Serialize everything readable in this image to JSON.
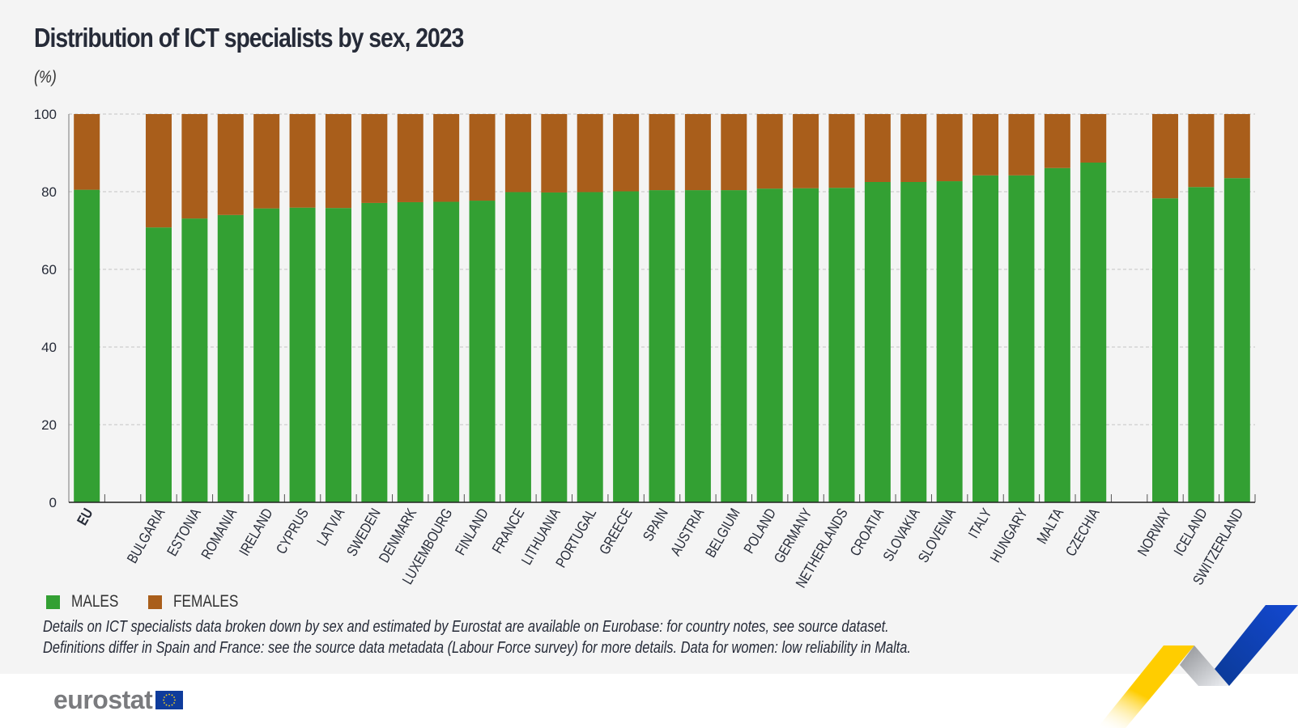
{
  "header": {
    "title": "Distribution of ICT specialists by sex, 2023",
    "unit": "(%)"
  },
  "legend": {
    "items": [
      {
        "label": "MALES",
        "color": "#33a033"
      },
      {
        "label": "FEMALES",
        "color": "#a95e1b"
      }
    ]
  },
  "notes": [
    "Details on ICT specialists data broken down by sex and estimated by Eurostat are available on Eurobase: for country notes, see source dataset.",
    "Definitions differ in Spain and France: see the source data metadata (Labour Force survey) for more details. Data for women: low reliability in Malta."
  ],
  "footer": {
    "logo_text": "eurostat"
  },
  "chart_data": {
    "type": "bar",
    "stacked": true,
    "title": "Distribution of ICT specialists by sex, 2023",
    "ylabel": "(%)",
    "xlabel": "",
    "ylim": [
      0,
      100
    ],
    "yticks": [
      0,
      20,
      40,
      60,
      80,
      100
    ],
    "grid": true,
    "legend_position": "bottom-left",
    "categories": [
      "EU",
      "",
      "BULGARIA",
      "ESTONIA",
      "ROMANIA",
      "IRELAND",
      "CYPRUS",
      "LATVIA",
      "SWEDEN",
      "DENMARK",
      "LUXEMBOURG",
      "FINLAND",
      "FRANCE",
      "LITHUANIA",
      "PORTUGAL",
      "GREECE",
      "SPAIN",
      "AUSTRIA",
      "BELGIUM",
      "POLAND",
      "GERMANY",
      "NETHERLANDS",
      "CROATIA",
      "SLOVAKIA",
      "SLOVENIA",
      "ITALY",
      "HUNGARY",
      "MALTA",
      "CZECHIA",
      "",
      "NORWAY",
      "ICELAND",
      "SWITZERLAND"
    ],
    "series": [
      {
        "name": "MALES",
        "color": "#33a033",
        "values": [
          80.5,
          null,
          70.8,
          73.1,
          74.0,
          75.7,
          75.9,
          75.8,
          77.1,
          77.3,
          77.4,
          77.7,
          79.9,
          79.8,
          79.9,
          80.1,
          80.4,
          80.4,
          80.4,
          80.8,
          80.9,
          81.0,
          82.5,
          82.5,
          82.7,
          84.2,
          84.2,
          86.1,
          87.5,
          null,
          78.3,
          81.2,
          83.5
        ]
      },
      {
        "name": "FEMALES",
        "color": "#a95e1b",
        "values": [
          19.5,
          null,
          29.2,
          26.9,
          26.0,
          24.3,
          24.1,
          24.2,
          22.9,
          22.7,
          22.6,
          22.3,
          20.1,
          20.2,
          20.1,
          19.9,
          19.6,
          19.6,
          19.6,
          19.2,
          19.1,
          19.0,
          17.5,
          17.5,
          17.3,
          15.8,
          15.8,
          13.9,
          12.5,
          null,
          21.7,
          18.8,
          16.5
        ]
      }
    ],
    "bold_categories": [
      "EU"
    ]
  }
}
